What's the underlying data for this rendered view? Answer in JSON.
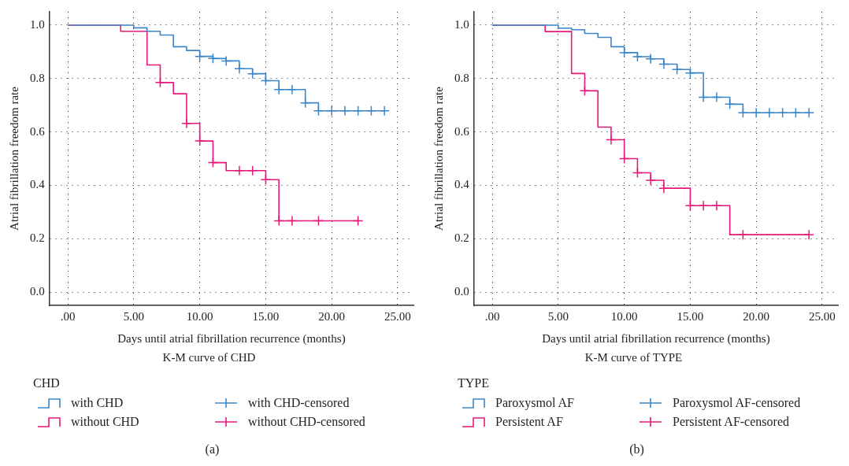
{
  "chart_data": [
    {
      "type": "step",
      "title": "K-M curve of CHD",
      "xlabel": "Days until atrial fibrillation recurrence (months)",
      "ylabel": "Atrial fibrillation freedom rate",
      "legend_title": "CHD",
      "legend": "bottom left",
      "grid": true,
      "line_style": "solid",
      "annotations": [
        "(a)"
      ],
      "xlim": [
        -1.4,
        26.2
      ],
      "ylim": [
        -0.05,
        1.05
      ],
      "xticks": [
        {
          "value": 0,
          "label": ".00"
        },
        {
          "value": 5,
          "label": "5.00"
        },
        {
          "value": 10,
          "label": "10.00"
        },
        {
          "value": 15,
          "label": "15.00"
        },
        {
          "value": 20,
          "label": "20.00"
        },
        {
          "value": 25,
          "label": "25.00"
        }
      ],
      "yticks": [
        {
          "value": 0,
          "label": "0.0"
        },
        {
          "value": 0.2,
          "label": "0.2"
        },
        {
          "value": 0.4,
          "label": "0.4"
        },
        {
          "value": 0.6,
          "label": "0.6"
        },
        {
          "value": 0.8,
          "label": "0.8"
        },
        {
          "value": 1,
          "label": "1.0"
        }
      ],
      "series": [
        {
          "name": "with CHD",
          "type": "step",
          "marker": "none",
          "color": "#3a86c8",
          "x": [
            0,
            5,
            6,
            7,
            8,
            9,
            10,
            11,
            12,
            13,
            14,
            15,
            16,
            18,
            19,
            24
          ],
          "values": [
            1,
            0.99,
            0.977,
            0.963,
            0.919,
            0.905,
            0.883,
            0.875,
            0.866,
            0.837,
            0.818,
            0.792,
            0.759,
            0.709,
            0.679,
            0.679
          ]
        },
        {
          "name": "without CHD",
          "type": "step",
          "marker": "none",
          "color": "#e8177a",
          "x": [
            0,
            4,
            6,
            7,
            8,
            9,
            10,
            11,
            12,
            15,
            16,
            22
          ],
          "values": [
            1,
            0.977,
            0.851,
            0.785,
            0.743,
            0.632,
            0.566,
            0.485,
            0.455,
            0.421,
            0.267,
            0.267
          ]
        },
        {
          "name": "with CHD-censored",
          "type": "scatter",
          "marker": "cross",
          "color": "#3a86c8",
          "x": [
            10,
            11,
            12,
            13,
            14,
            15,
            16,
            17,
            18,
            19,
            20,
            21,
            22,
            23,
            24
          ],
          "values": [
            0.883,
            0.875,
            0.866,
            0.837,
            0.818,
            0.792,
            0.759,
            0.759,
            0.709,
            0.679,
            0.679,
            0.679,
            0.679,
            0.679,
            0.679
          ]
        },
        {
          "name": "without CHD-censored",
          "type": "scatter",
          "marker": "cross",
          "color": "#e8177a",
          "x": [
            7,
            9,
            10,
            11,
            13,
            14,
            15,
            16,
            17,
            19,
            22
          ],
          "values": [
            0.785,
            0.632,
            0.566,
            0.485,
            0.455,
            0.455,
            0.421,
            0.267,
            0.267,
            0.267,
            0.267
          ]
        }
      ]
    },
    {
      "type": "step",
      "title": "K-M curve of TYPE",
      "xlabel": "Days until atrial fibrillation recurrence (months)",
      "ylabel": "Atrial fibrillation freedom rate",
      "legend_title": "TYPE",
      "legend": "bottom left",
      "grid": true,
      "line_style": "solid",
      "annotations": [
        "(b)"
      ],
      "xlim": [
        -1.4,
        26.2
      ],
      "ylim": [
        -0.05,
        1.05
      ],
      "xticks": [
        {
          "value": 0,
          "label": ".00"
        },
        {
          "value": 5,
          "label": "5.00"
        },
        {
          "value": 10,
          "label": "10.00"
        },
        {
          "value": 15,
          "label": "15.00"
        },
        {
          "value": 20,
          "label": "20.00"
        },
        {
          "value": 25,
          "label": "25.00"
        }
      ],
      "yticks": [
        {
          "value": 0,
          "label": "0.0"
        },
        {
          "value": 0.2,
          "label": "0.2"
        },
        {
          "value": 0.4,
          "label": "0.4"
        },
        {
          "value": 0.6,
          "label": "0.6"
        },
        {
          "value": 0.8,
          "label": "0.8"
        },
        {
          "value": 1,
          "label": "1.0"
        }
      ],
      "series": [
        {
          "name": "Paroxysmol AF",
          "type": "step",
          "marker": "none",
          "color": "#3a86c8",
          "x": [
            0,
            5,
            6,
            7,
            8,
            9,
            10,
            11,
            12,
            13,
            14,
            15,
            16,
            18,
            19,
            24
          ],
          "values": [
            1,
            0.989,
            0.983,
            0.969,
            0.954,
            0.919,
            0.897,
            0.882,
            0.874,
            0.854,
            0.834,
            0.821,
            0.73,
            0.704,
            0.672,
            0.672
          ]
        },
        {
          "name": "Persistent AF",
          "type": "step",
          "marker": "none",
          "color": "#e8177a",
          "x": [
            0,
            4,
            6,
            7,
            8,
            9,
            10,
            11,
            12,
            13,
            15,
            18,
            24
          ],
          "values": [
            1,
            0.976,
            0.819,
            0.754,
            0.618,
            0.571,
            0.5,
            0.447,
            0.419,
            0.389,
            0.324,
            0.215,
            0.215
          ]
        },
        {
          "name": "Paroxysmol AF-censored",
          "type": "scatter",
          "marker": "cross",
          "color": "#3a86c8",
          "x": [
            10,
            11,
            12,
            13,
            14,
            15,
            16,
            17,
            18,
            19,
            20,
            21,
            22,
            23,
            24
          ],
          "values": [
            0.897,
            0.882,
            0.874,
            0.854,
            0.834,
            0.821,
            0.73,
            0.73,
            0.704,
            0.672,
            0.672,
            0.672,
            0.672,
            0.672,
            0.672
          ]
        },
        {
          "name": "Persistent AF-censored",
          "type": "scatter",
          "marker": "cross",
          "color": "#e8177a",
          "x": [
            7,
            9,
            10,
            11,
            12,
            13,
            15,
            16,
            17,
            19,
            24
          ],
          "values": [
            0.754,
            0.571,
            0.5,
            0.447,
            0.419,
            0.389,
            0.324,
            0.324,
            0.324,
            0.215,
            0.215
          ]
        }
      ]
    }
  ]
}
